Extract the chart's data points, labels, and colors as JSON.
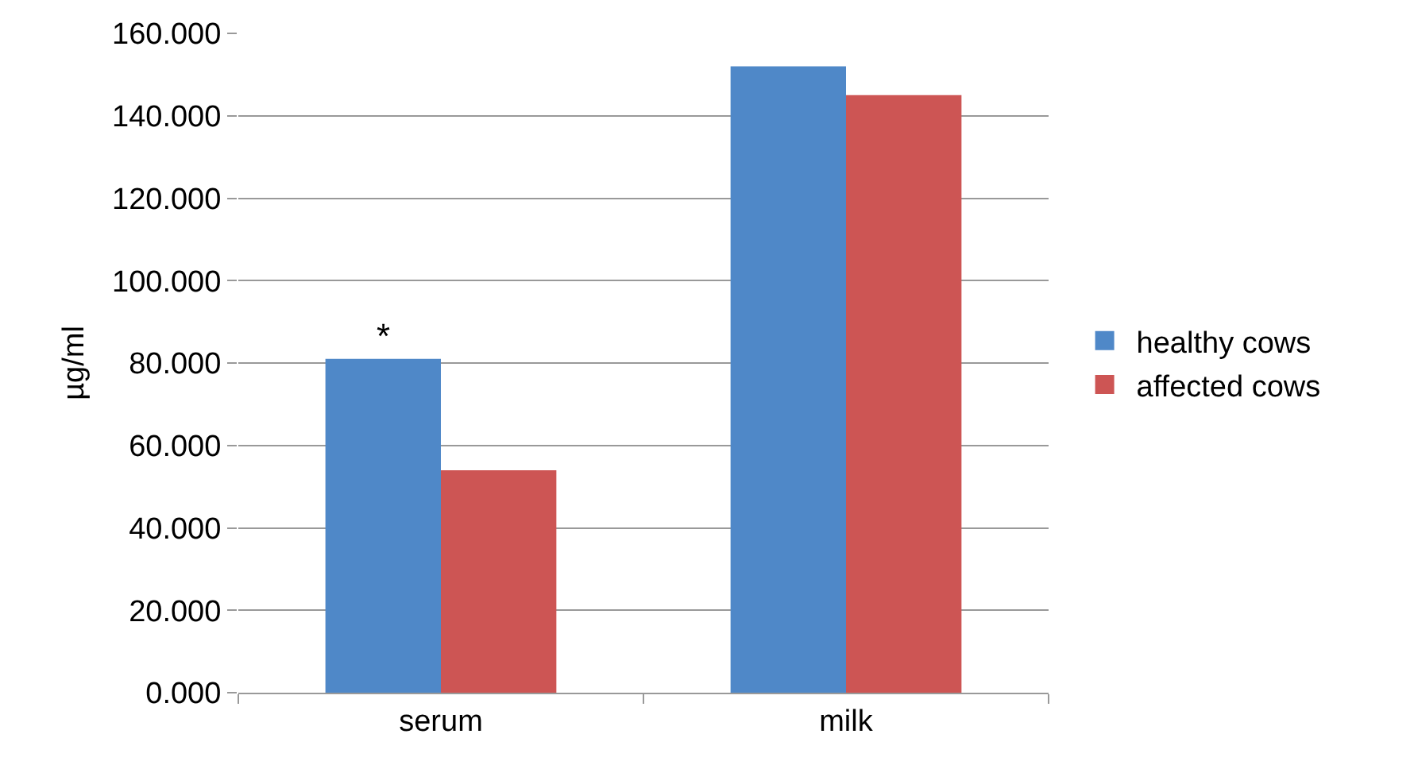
{
  "chart_data": {
    "type": "bar",
    "ylabel": "µg/ml",
    "categories": [
      "serum",
      "milk"
    ],
    "series": [
      {
        "name": "healthy cows",
        "color": "#4f88c8",
        "values": [
          81,
          152
        ]
      },
      {
        "name": "affected cows",
        "color": "#cd5554",
        "values": [
          54,
          145
        ]
      }
    ],
    "ylim": [
      0,
      160
    ],
    "yticks": [
      {
        "value": 0,
        "label": "0.000"
      },
      {
        "value": 20,
        "label": "20.000"
      },
      {
        "value": 40,
        "label": "40.000"
      },
      {
        "value": 60,
        "label": "60.000"
      },
      {
        "value": 80,
        "label": "80.000"
      },
      {
        "value": 100,
        "label": "100.000"
      },
      {
        "value": 120,
        "label": "120.000"
      },
      {
        "value": 140,
        "label": "140.000"
      },
      {
        "value": 160,
        "label": "160.000"
      }
    ],
    "grid": "y",
    "legend": "right",
    "annotations": [
      {
        "text": "*",
        "x": "serum",
        "y": 81
      }
    ]
  }
}
